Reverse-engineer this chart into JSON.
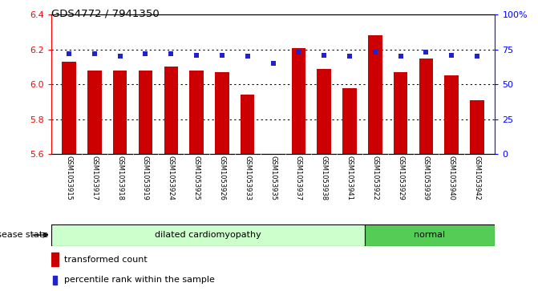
{
  "title": "GDS4772 / 7941350",
  "samples": [
    "GSM1053915",
    "GSM1053917",
    "GSM1053918",
    "GSM1053919",
    "GSM1053924",
    "GSM1053925",
    "GSM1053926",
    "GSM1053933",
    "GSM1053935",
    "GSM1053937",
    "GSM1053938",
    "GSM1053941",
    "GSM1053922",
    "GSM1053929",
    "GSM1053939",
    "GSM1053940",
    "GSM1053942"
  ],
  "transformed_count": [
    6.13,
    6.08,
    6.08,
    6.08,
    6.1,
    6.08,
    6.07,
    5.94,
    5.6,
    6.21,
    6.09,
    5.98,
    6.28,
    6.07,
    6.15,
    6.05,
    5.91
  ],
  "percentile_rank": [
    72,
    72,
    70,
    72,
    72,
    71,
    71,
    70,
    65,
    73,
    71,
    70,
    73,
    70,
    73,
    71,
    70
  ],
  "ylim_left": [
    5.6,
    6.4
  ],
  "ylim_right": [
    0,
    100
  ],
  "yticks_left": [
    5.6,
    5.8,
    6.0,
    6.2,
    6.4
  ],
  "yticks_right": [
    0,
    25,
    50,
    75,
    100
  ],
  "ytick_labels_right": [
    "0",
    "25",
    "50",
    "75",
    "100%"
  ],
  "bar_color": "#cc0000",
  "dot_color": "#2222cc",
  "bar_bottom": 5.6,
  "group1_label": "dilated cardiomyopathy",
  "group2_label": "normal",
  "group1_count": 12,
  "group2_count": 5,
  "disease_label": "disease state",
  "legend_bar": "transformed count",
  "legend_dot": "percentile rank within the sample",
  "tick_bg_color": "#d0d0d0",
  "group1_bg": "#ccffcc",
  "group2_bg": "#55cc55"
}
